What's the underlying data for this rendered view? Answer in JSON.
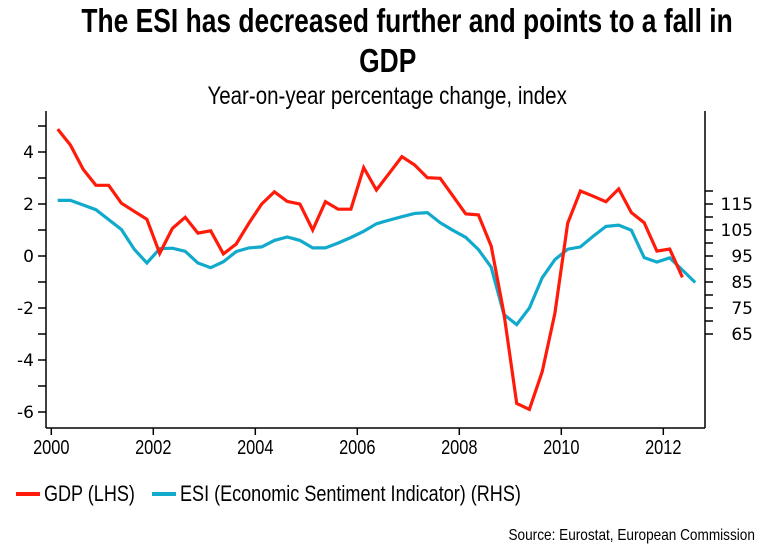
{
  "chart_data": {
    "type": "line",
    "title": "The ESI has decreased further and points to a fall in GDP",
    "title_lines": [
      "The ESI has decreased further and points to a fall in",
      "GDP"
    ],
    "subtitle": "Year-on-year percentage change, index",
    "source": "Source: Eurostat, European Commission",
    "x_frequency": "quarterly",
    "x_start": 2000.125,
    "x_step": 0.25,
    "xlim": [
      1999.75,
      2012.85
    ],
    "x_ticks": [
      2000,
      2002,
      2004,
      2006,
      2008,
      2010,
      2012
    ],
    "x_tick_labels": [
      "2000",
      "2002",
      "2004",
      "2006",
      "2008",
      "2010",
      "2012"
    ],
    "ylim_left": [
      -6.5,
      5.6
    ],
    "y_ticks_left": [
      -6,
      -4,
      -2,
      0,
      2,
      4
    ],
    "y_tick_labels_left": [
      "-6",
      "-4",
      "-2",
      "0",
      "2",
      "4"
    ],
    "ylim_right": [
      62.5,
      123
    ],
    "y_ticks_right": [
      65,
      75,
      85,
      95,
      105,
      115
    ],
    "y_tick_labels_right": [
      "65",
      "75",
      "85",
      "95",
      "105",
      "115"
    ],
    "grid": false,
    "legend_position": "bottom-left",
    "series": [
      {
        "name": "GDP (LHS)",
        "axis": "left",
        "color": "#ff1a0a",
        "values": [
          4.88,
          4.27,
          3.33,
          2.72,
          2.72,
          2.03,
          1.72,
          1.41,
          0.1,
          1.06,
          1.49,
          0.88,
          0.97,
          0.08,
          0.46,
          1.26,
          2.0,
          2.47,
          2.1,
          2.0,
          1.0,
          2.09,
          1.8,
          1.8,
          3.4,
          2.54,
          3.18,
          3.82,
          3.5,
          3.01,
          2.99,
          2.31,
          1.62,
          1.58,
          0.38,
          -2.2,
          -5.67,
          -5.9,
          -4.45,
          -2.2,
          1.26,
          2.5,
          2.3,
          2.09,
          2.58,
          1.67,
          1.28,
          0.19,
          0.27,
          -0.82
        ]
      },
      {
        "name": "ESI (Economic Sentiment Indicator) (RHS)",
        "axis": "right",
        "color": "#11aacc",
        "values": [
          116.4,
          116.4,
          114.6,
          112.8,
          109.0,
          105.2,
          97.6,
          92.3,
          97.8,
          98.0,
          96.8,
          92.3,
          90.5,
          92.8,
          96.7,
          98.1,
          98.5,
          101.0,
          102.3,
          101.0,
          98.1,
          98.1,
          100.0,
          102.1,
          104.5,
          107.4,
          108.8,
          110.1,
          111.4,
          111.7,
          107.8,
          104.9,
          102.2,
          97.5,
          90.7,
          72.5,
          68.6,
          75.0,
          86.6,
          93.6,
          97.6,
          98.5,
          102.6,
          106.4,
          106.9,
          104.9,
          94.4,
          92.7,
          94.3,
          89.6,
          84.8
        ]
      }
    ]
  }
}
